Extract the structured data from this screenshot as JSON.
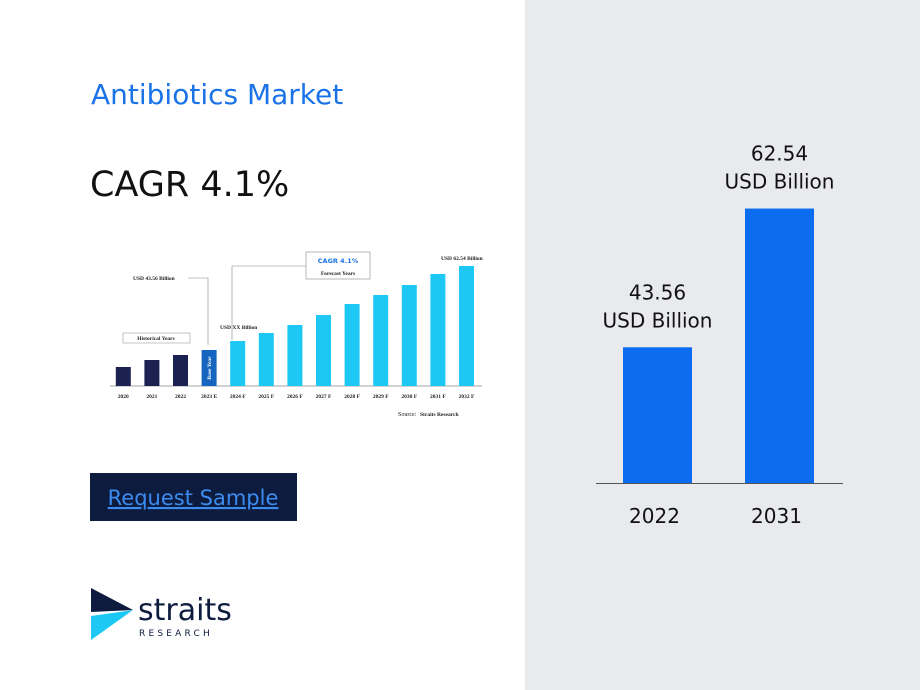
{
  "header": {
    "title": "Antibiotics Market",
    "cagr": "CAGR 4.1%"
  },
  "thumbnail": {
    "type": "bar",
    "categories": [
      "2020",
      "2021",
      "2022",
      "2023 E",
      "2024 F",
      "2025 F",
      "2026 F",
      "2027 F",
      "2028 F",
      "2029 F",
      "2030 F",
      "2031 F",
      "2032 F"
    ],
    "values": [
      19,
      26,
      31,
      36,
      45,
      53,
      61,
      71,
      82,
      91,
      101,
      112,
      120
    ],
    "ylim": [
      0,
      130
    ],
    "colors": [
      "#1b2150",
      "#1b2150",
      "#1b2150",
      "#1565c0",
      "#1ec8f5",
      "#1ec8f5",
      "#1ec8f5",
      "#1ec8f5",
      "#1ec8f5",
      "#1ec8f5",
      "#1ec8f5",
      "#1ec8f5",
      "#1ec8f5"
    ],
    "annotations": {
      "historical": "Historical Years",
      "base_year": "Base Year",
      "start_value": "USD 43.56 Billion",
      "mid_value": "USD XX Billion",
      "end_value": "USD 62.54 Billion",
      "cagr": "CAGR 4.1%",
      "forecast": "Forecast Years",
      "source_label": "Source:",
      "source": "Straits Research"
    }
  },
  "button": {
    "label": "Request Sample"
  },
  "logo": {
    "name": "straits",
    "tagline": "RESEARCH"
  },
  "chart_data": {
    "type": "bar",
    "categories": [
      "2022",
      "2031"
    ],
    "values": [
      43.56,
      62.54
    ],
    "value_unit": "USD Billion",
    "color": "#0b6cf0",
    "ylim": [
      25,
      70
    ]
  }
}
